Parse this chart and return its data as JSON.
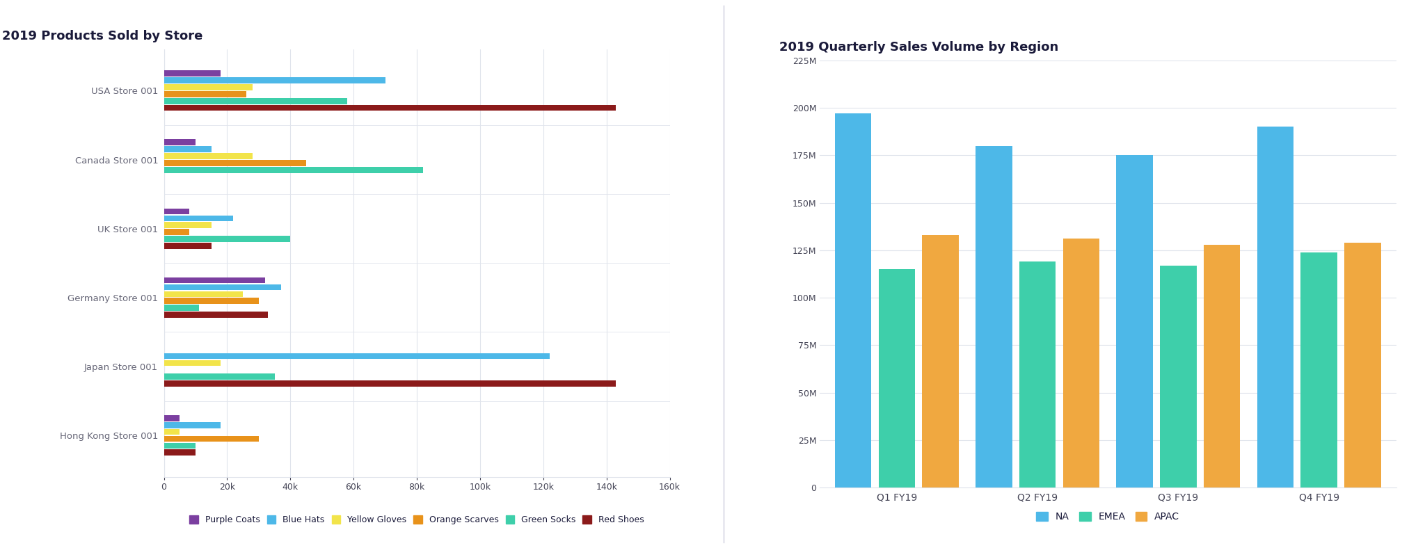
{
  "left_title": "2019 Products Sold by Store",
  "right_title": "2019 Quarterly Sales Volume by Region",
  "stores": [
    "USA Store 001",
    "Canada Store 001",
    "UK Store 001",
    "Germany Store 001",
    "Japan Store 001",
    "Hong Kong Store 001"
  ],
  "products": [
    "Purple Coats",
    "Blue Hats",
    "Yellow Gloves",
    "Orange Scarves",
    "Green Socks",
    "Red Shoes"
  ],
  "product_colors": [
    "#7b3fa0",
    "#4db8e8",
    "#f2e44a",
    "#e8921a",
    "#3ecfaa",
    "#8b1a1a"
  ],
  "bar_data": {
    "USA Store 001": [
      18000,
      70000,
      28000,
      26000,
      58000,
      143000
    ],
    "Canada Store 001": [
      10000,
      15000,
      28000,
      45000,
      82000,
      0
    ],
    "UK Store 001": [
      8000,
      22000,
      15000,
      8000,
      40000,
      15000
    ],
    "Germany Store 001": [
      32000,
      37000,
      25000,
      30000,
      11000,
      33000
    ],
    "Japan Store 001": [
      0,
      122000,
      18000,
      0,
      35000,
      143000
    ],
    "Hong Kong Store 001": [
      5000,
      18000,
      5000,
      30000,
      10000,
      10000
    ]
  },
  "left_xlim": [
    0,
    160000
  ],
  "left_xticks": [
    0,
    20000,
    40000,
    60000,
    80000,
    100000,
    120000,
    140000,
    160000
  ],
  "left_xtick_labels": [
    "0",
    "20k",
    "40k",
    "60k",
    "80k",
    "100k",
    "120k",
    "140k",
    "160k"
  ],
  "quarters": [
    "Q1 FY19",
    "Q2 FY19",
    "Q3 FY19",
    "Q4 FY19"
  ],
  "regions": [
    "NA",
    "EMEA",
    "APAC"
  ],
  "region_colors": [
    "#4db8e8",
    "#3ecfaa",
    "#f0a840"
  ],
  "right_data": {
    "NA": [
      197000000,
      180000000,
      175000000,
      190000000
    ],
    "EMEA": [
      115000000,
      119000000,
      117000000,
      124000000
    ],
    "APAC": [
      133000000,
      131000000,
      128000000,
      129000000
    ]
  },
  "right_ylim": [
    0,
    225000000
  ],
  "right_yticks": [
    0,
    25000000,
    50000000,
    75000000,
    100000000,
    125000000,
    150000000,
    175000000,
    200000000,
    225000000
  ],
  "right_ytick_labels": [
    "0",
    "25M",
    "50M",
    "75M",
    "100M",
    "125M",
    "150M",
    "175M",
    "200M",
    "225M"
  ],
  "bg_color": "#ffffff",
  "grid_color": "#e0e4ec",
  "title_color": "#1a1a3a",
  "label_color": "#666677",
  "tick_color": "#444455"
}
